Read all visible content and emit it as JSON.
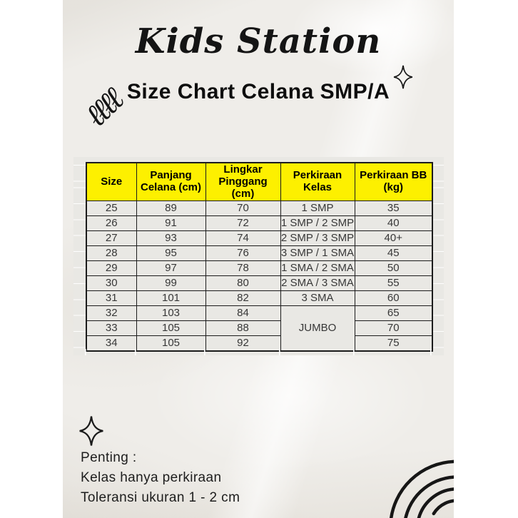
{
  "brand": "Kids Station",
  "title": "Size Chart Celana SMP/A",
  "table": {
    "headers": [
      "Size",
      "Panjang\nCelana (cm)",
      "Lingkar\nPinggang (cm)",
      "Perkiraan\nKelas",
      "Perkiraan BB\n(kg)"
    ],
    "rows": [
      {
        "cells": [
          {
            "t": "25"
          },
          {
            "t": "89"
          },
          {
            "t": "70"
          },
          {
            "t": "1 SMP"
          },
          {
            "t": "35"
          }
        ]
      },
      {
        "cells": [
          {
            "t": "26"
          },
          {
            "t": "91"
          },
          {
            "t": "72"
          },
          {
            "t": "1 SMP / 2 SMP"
          },
          {
            "t": "40"
          }
        ]
      },
      {
        "cells": [
          {
            "t": "27"
          },
          {
            "t": "93"
          },
          {
            "t": "74"
          },
          {
            "t": "2 SMP / 3 SMP"
          },
          {
            "t": "40+"
          }
        ]
      },
      {
        "cells": [
          {
            "t": "28"
          },
          {
            "t": "95"
          },
          {
            "t": "76"
          },
          {
            "t": "3 SMP / 1 SMA"
          },
          {
            "t": "45"
          }
        ]
      },
      {
        "cells": [
          {
            "t": "29"
          },
          {
            "t": "97"
          },
          {
            "t": "78"
          },
          {
            "t": "1 SMA / 2 SMA"
          },
          {
            "t": "50"
          }
        ]
      },
      {
        "cells": [
          {
            "t": "30"
          },
          {
            "t": "99"
          },
          {
            "t": "80"
          },
          {
            "t": "2 SMA / 3 SMA"
          },
          {
            "t": "55"
          }
        ]
      },
      {
        "cells": [
          {
            "t": "31"
          },
          {
            "t": "101"
          },
          {
            "t": "82"
          },
          {
            "t": "3 SMA"
          },
          {
            "t": "60"
          }
        ]
      },
      {
        "cells": [
          {
            "t": "32"
          },
          {
            "t": "103"
          },
          {
            "t": "84"
          },
          {
            "t": "JUMBO",
            "rowspan": 3
          },
          {
            "t": "65"
          }
        ]
      },
      {
        "cells": [
          {
            "t": "33"
          },
          {
            "t": "105"
          },
          {
            "t": "88"
          },
          {
            "t": "70"
          }
        ]
      },
      {
        "cells": [
          {
            "t": "34"
          },
          {
            "t": "105"
          },
          {
            "t": "92"
          },
          {
            "t": "75"
          }
        ]
      }
    ]
  },
  "notes": {
    "heading": "Penting :",
    "lines": [
      "Kelas hanya perkiraan",
      "Toleransi ukuran 1 - 2 cm"
    ]
  },
  "icons": {
    "coil_glyphs": "ℓℓℓℓ",
    "sparkle": "four-pointed-star-outline",
    "rainbow": "four-arc-rainbow-outline"
  },
  "colors": {
    "header_bg": "#fdf000",
    "cell_bg": "#e9e8e4",
    "table_border": "#1c1c1c",
    "paper": "#efede9",
    "ink": "#191919"
  }
}
